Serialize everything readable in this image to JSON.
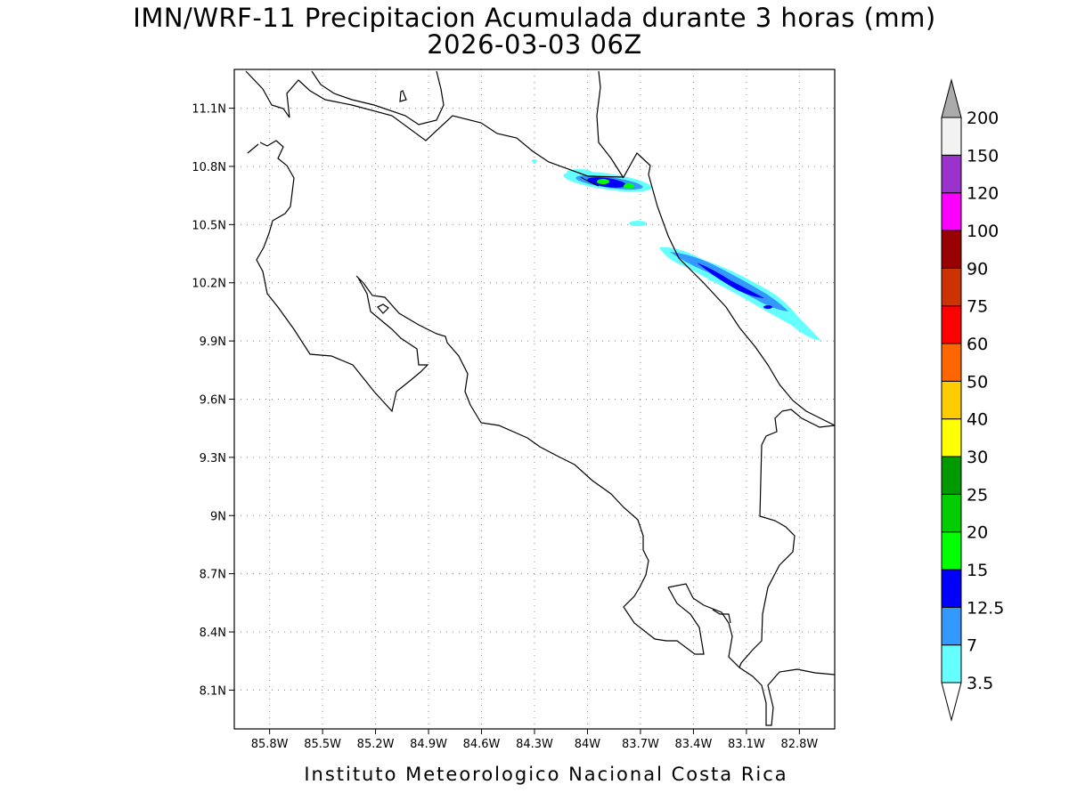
{
  "title": {
    "line1": "IMN/WRF-11 Precipitacion Acumulada durante 3 horas (mm)",
    "line2": "2026-03-03 06Z"
  },
  "footer": "Instituto Meteorologico Nacional Costa Rica",
  "map": {
    "lon_range": [
      -86.0,
      -82.6
    ],
    "lat_range": [
      7.9,
      11.3
    ],
    "lon_ticks": [
      {
        "value": -85.8,
        "label": "85.8W"
      },
      {
        "value": -85.5,
        "label": "85.5W"
      },
      {
        "value": -85.2,
        "label": "85.2W"
      },
      {
        "value": -84.9,
        "label": "84.9W"
      },
      {
        "value": -84.6,
        "label": "84.6W"
      },
      {
        "value": -84.3,
        "label": "84.3W"
      },
      {
        "value": -84.0,
        "label": "84W"
      },
      {
        "value": -83.7,
        "label": "83.7W"
      },
      {
        "value": -83.4,
        "label": "83.4W"
      },
      {
        "value": -83.1,
        "label": "83.1W"
      },
      {
        "value": -82.8,
        "label": "82.8W"
      }
    ],
    "lat_ticks": [
      {
        "value": 11.1,
        "label": "11.1N"
      },
      {
        "value": 10.8,
        "label": "10.8N"
      },
      {
        "value": 10.5,
        "label": "10.5N"
      },
      {
        "value": 10.2,
        "label": "10.2N"
      },
      {
        "value": 9.9,
        "label": "9.9N"
      },
      {
        "value": 9.6,
        "label": "9.6N"
      },
      {
        "value": 9.3,
        "label": "9.3N"
      },
      {
        "value": 9.0,
        "label": "9N"
      },
      {
        "value": 8.7,
        "label": "8.7N"
      },
      {
        "value": 8.4,
        "label": "8.4N"
      },
      {
        "value": 8.1,
        "label": "8.1N"
      }
    ],
    "grid": "dotted"
  },
  "colorbar": {
    "levels": [
      {
        "label": "3.5",
        "color": "#66ffff"
      },
      {
        "label": "7",
        "color": "#3399ff"
      },
      {
        "label": "12.5",
        "color": "#0000ff"
      },
      {
        "label": "15",
        "color": "#00ff00"
      },
      {
        "label": "20",
        "color": "#00cc00"
      },
      {
        "label": "25",
        "color": "#009900"
      },
      {
        "label": "30",
        "color": "#ffff00"
      },
      {
        "label": "40",
        "color": "#ffcc00"
      },
      {
        "label": "50",
        "color": "#ff6600"
      },
      {
        "label": "60",
        "color": "#ff0000"
      },
      {
        "label": "75",
        "color": "#cc3300"
      },
      {
        "label": "90",
        "color": "#990000"
      },
      {
        "label": "100",
        "color": "#ff00ff"
      },
      {
        "label": "120",
        "color": "#9933cc"
      },
      {
        "label": "150",
        "color": "#f2f2f2"
      },
      {
        "label": "200",
        "color": "#aaaaaa"
      }
    ],
    "low_arrow_color": "#ffffff",
    "high_arrow_color": "#aaaaaa"
  }
}
